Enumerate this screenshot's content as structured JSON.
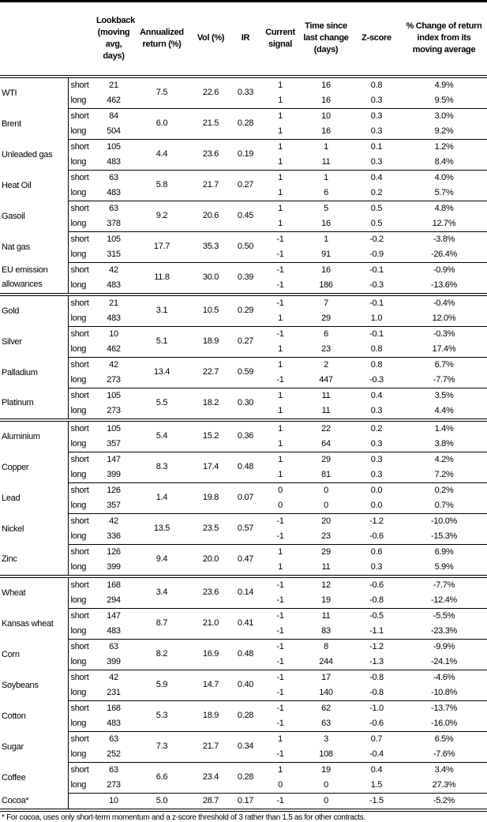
{
  "headers": [
    "",
    "",
    "Lookback (moving avg, days)",
    "Annualized return (%)",
    "Vol (%)",
    "IR",
    "Current signal",
    "Time since last change (days)",
    "Z-score",
    "% Change of return index from its moving average"
  ],
  "groups": [
    [
      {
        "name": "WTI",
        "ann": "7.5",
        "vol": "22.6",
        "ir": "0.33",
        "rows": [
          [
            "short",
            "21",
            "1",
            "16",
            "0.8",
            "4.9%"
          ],
          [
            "long",
            "462",
            "1",
            "16",
            "0.3",
            "9.5%"
          ]
        ]
      },
      {
        "name": "Brent",
        "ann": "6.0",
        "vol": "21.5",
        "ir": "0.28",
        "rows": [
          [
            "short",
            "84",
            "1",
            "10",
            "0.3",
            "3.0%"
          ],
          [
            "long",
            "504",
            "1",
            "16",
            "0.3",
            "9.2%"
          ]
        ]
      },
      {
        "name": "Unleaded gas",
        "ann": "4.4",
        "vol": "23.6",
        "ir": "0.19",
        "rows": [
          [
            "short",
            "105",
            "1",
            "1",
            "0.1",
            "1.2%"
          ],
          [
            "long",
            "483",
            "1",
            "11",
            "0.3",
            "8.4%"
          ]
        ]
      },
      {
        "name": "Heat Oil",
        "ann": "5.8",
        "vol": "21.7",
        "ir": "0.27",
        "rows": [
          [
            "short",
            "63",
            "1",
            "1",
            "0.4",
            "4.0%"
          ],
          [
            "long",
            "483",
            "1",
            "6",
            "0.2",
            "5.7%"
          ]
        ]
      },
      {
        "name": "Gasoil",
        "ann": "9.2",
        "vol": "20.6",
        "ir": "0.45",
        "rows": [
          [
            "short",
            "63",
            "1",
            "5",
            "0.5",
            "4.8%"
          ],
          [
            "long",
            "378",
            "1",
            "16",
            "0.5",
            "12.7%"
          ]
        ]
      },
      {
        "name": "Nat gas",
        "ann": "17.7",
        "vol": "35.3",
        "ir": "0.50",
        "rows": [
          [
            "short",
            "105",
            "-1",
            "1",
            "-0.2",
            "-3.8%"
          ],
          [
            "long",
            "315",
            "-1",
            "91",
            "-0.9",
            "-26.4%"
          ]
        ]
      },
      {
        "name": "EU emission allowances",
        "ann": "11.8",
        "vol": "30.0",
        "ir": "0.39",
        "rows": [
          [
            "short",
            "42",
            "-1",
            "16",
            "-0.1",
            "-0.9%"
          ],
          [
            "long",
            "483",
            "-1",
            "186",
            "-0.3",
            "-13.6%"
          ]
        ]
      }
    ],
    [
      {
        "name": "Gold",
        "ann": "3.1",
        "vol": "10.5",
        "ir": "0.29",
        "rows": [
          [
            "short",
            "21",
            "-1",
            "7",
            "-0.1",
            "-0.4%"
          ],
          [
            "long",
            "483",
            "1",
            "29",
            "1.0",
            "12.0%"
          ]
        ]
      },
      {
        "name": "Silver",
        "ann": "5.1",
        "vol": "18.9",
        "ir": "0.27",
        "rows": [
          [
            "short",
            "10",
            "-1",
            "6",
            "-0.1",
            "-0.3%"
          ],
          [
            "long",
            "462",
            "1",
            "23",
            "0.8",
            "17.4%"
          ]
        ]
      },
      {
        "name": "Palladium",
        "ann": "13.4",
        "vol": "22.7",
        "ir": "0.59",
        "rows": [
          [
            "short",
            "42",
            "1",
            "2",
            "0.8",
            "6.7%"
          ],
          [
            "long",
            "273",
            "-1",
            "447",
            "-0.3",
            "-7.7%"
          ]
        ]
      },
      {
        "name": "Platinum",
        "ann": "5.5",
        "vol": "18.2",
        "ir": "0.30",
        "rows": [
          [
            "short",
            "105",
            "1",
            "11",
            "0.4",
            "3.5%"
          ],
          [
            "long",
            "273",
            "1",
            "11",
            "0.3",
            "4.4%"
          ]
        ]
      }
    ],
    [
      {
        "name": "Aluminium",
        "ann": "5.4",
        "vol": "15.2",
        "ir": "0.36",
        "rows": [
          [
            "short",
            "105",
            "1",
            "22",
            "0.2",
            "1.4%"
          ],
          [
            "long",
            "357",
            "1",
            "64",
            "0.3",
            "3.8%"
          ]
        ]
      },
      {
        "name": "Copper",
        "ann": "8.3",
        "vol": "17.4",
        "ir": "0.48",
        "rows": [
          [
            "short",
            "147",
            "1",
            "29",
            "0.3",
            "4.2%"
          ],
          [
            "long",
            "399",
            "1",
            "81",
            "0.3",
            "7.2%"
          ]
        ]
      },
      {
        "name": "Lead",
        "ann": "1.4",
        "vol": "19.8",
        "ir": "0.07",
        "rows": [
          [
            "short",
            "126",
            "0",
            "0",
            "0.0",
            "0.2%"
          ],
          [
            "long",
            "357",
            "0",
            "0",
            "0.0",
            "0.7%"
          ]
        ]
      },
      {
        "name": "Nickel",
        "ann": "13.5",
        "vol": "23.5",
        "ir": "0.57",
        "rows": [
          [
            "short",
            "42",
            "-1",
            "20",
            "-1.2",
            "-10.0%"
          ],
          [
            "long",
            "336",
            "-1",
            "23",
            "-0.6",
            "-15.3%"
          ]
        ]
      },
      {
        "name": "Zinc",
        "ann": "9.4",
        "vol": "20.0",
        "ir": "0.47",
        "rows": [
          [
            "short",
            "126",
            "1",
            "29",
            "0.6",
            "6.9%"
          ],
          [
            "long",
            "399",
            "1",
            "11",
            "0.3",
            "5.9%"
          ]
        ]
      }
    ],
    [
      {
        "name": "Wheat",
        "ann": "3.4",
        "vol": "23.6",
        "ir": "0.14",
        "rows": [
          [
            "short",
            "168",
            "-1",
            "12",
            "-0.6",
            "-7.7%"
          ],
          [
            "long",
            "294",
            "-1",
            "19",
            "-0.8",
            "-12.4%"
          ]
        ]
      },
      {
        "name": "Kansas wheat",
        "ann": "8.7",
        "vol": "21.0",
        "ir": "0.41",
        "rows": [
          [
            "short",
            "147",
            "-1",
            "11",
            "-0.5",
            "-5.5%"
          ],
          [
            "long",
            "483",
            "-1",
            "83",
            "-1.1",
            "-23.3%"
          ]
        ]
      },
      {
        "name": "Corn",
        "ann": "8.2",
        "vol": "16.9",
        "ir": "0.48",
        "rows": [
          [
            "short",
            "63",
            "-1",
            "8",
            "-1.2",
            "-9.9%"
          ],
          [
            "long",
            "399",
            "-1",
            "244",
            "-1.3",
            "-24.1%"
          ]
        ]
      },
      {
        "name": "Soybeans",
        "ann": "5.9",
        "vol": "14.7",
        "ir": "0.40",
        "rows": [
          [
            "short",
            "42",
            "-1",
            "17",
            "-0.8",
            "-4.6%"
          ],
          [
            "long",
            "231",
            "-1",
            "140",
            "-0.8",
            "-10.8%"
          ]
        ]
      },
      {
        "name": "Cotton",
        "ann": "5.3",
        "vol": "18.9",
        "ir": "0.28",
        "rows": [
          [
            "short",
            "168",
            "-1",
            "62",
            "-1.0",
            "-13.7%"
          ],
          [
            "long",
            "483",
            "-1",
            "63",
            "-0.6",
            "-16.0%"
          ]
        ]
      },
      {
        "name": "Sugar",
        "ann": "7.3",
        "vol": "21.7",
        "ir": "0.34",
        "rows": [
          [
            "short",
            "63",
            "1",
            "3",
            "0.7",
            "6.5%"
          ],
          [
            "long",
            "252",
            "-1",
            "108",
            "-0.4",
            "-7.6%"
          ]
        ]
      },
      {
        "name": "Coffee",
        "ann": "6.6",
        "vol": "23.4",
        "ir": "0.28",
        "rows": [
          [
            "short",
            "63",
            "1",
            "19",
            "0.4",
            "3.4%"
          ],
          [
            "long",
            "273",
            "0",
            "0",
            "1.5",
            "27.3%"
          ]
        ]
      },
      {
        "name": "Cocoa*",
        "ann": "5.0",
        "vol": "28.7",
        "ir": "0.17",
        "rows": [
          [
            "",
            "10",
            "-1",
            "0",
            "-1.5",
            "-5.2%"
          ]
        ]
      }
    ]
  ],
  "footnote": "* For cocoa, uses only short-term momentum and a z-score threshold of 3 rather than 1.5 as for other contracts."
}
